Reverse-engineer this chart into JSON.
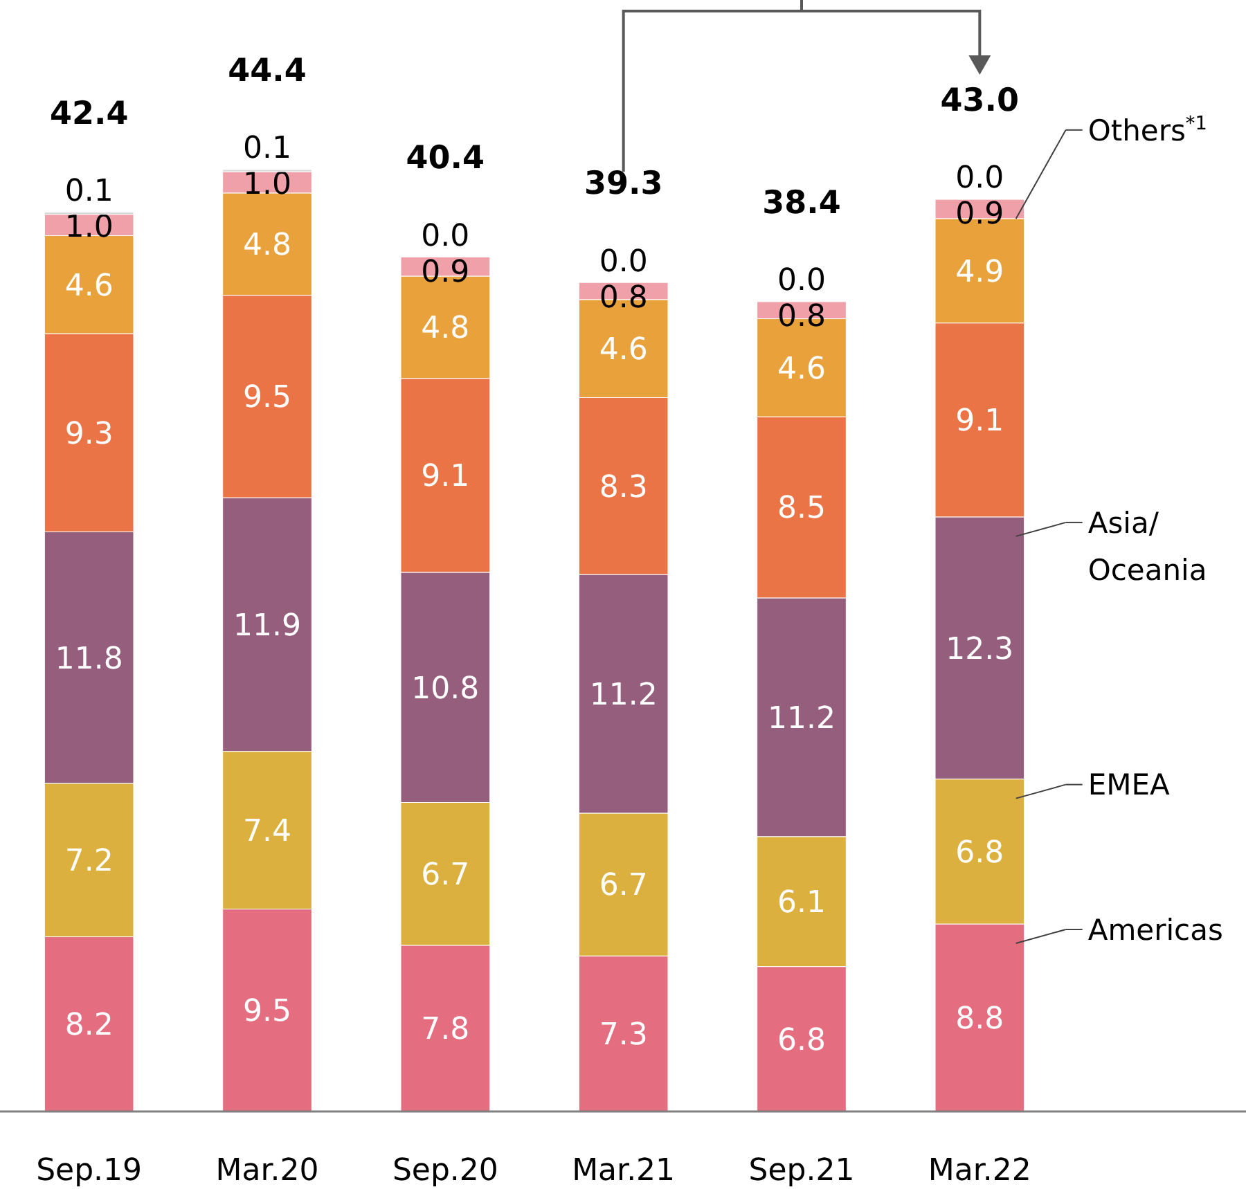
{
  "chart_data": {
    "type": "bar",
    "stacked": true,
    "data_labels": true,
    "legend": "right",
    "categories": [
      "Sep.19",
      "Mar.20",
      "Sep.20",
      "Mar.21",
      "Sep.21",
      "Mar.22"
    ],
    "series": [
      {
        "name": "Americas",
        "color": "#e46e80",
        "values": [
          8.2,
          9.5,
          7.8,
          7.3,
          6.8,
          8.8
        ]
      },
      {
        "name": "EMEA",
        "color": "#dcb03e",
        "values": [
          7.2,
          7.4,
          6.7,
          6.7,
          6.1,
          6.8
        ]
      },
      {
        "name": "Asia/Oceania",
        "color": "#955e7c",
        "values": [
          11.8,
          11.9,
          10.8,
          11.2,
          11.2,
          12.3
        ]
      },
      {
        "color": "#eb7447",
        "values": [
          9.3,
          9.5,
          9.1,
          8.3,
          8.5,
          9.1
        ]
      },
      {
        "color": "#e8a13b",
        "values": [
          4.6,
          4.8,
          4.8,
          4.6,
          4.6,
          4.9
        ]
      },
      {
        "color": "#f0a0a8",
        "values": [
          1.0,
          1.0,
          0.9,
          0.8,
          0.8,
          0.9
        ],
        "value_labels": [
          "1.0",
          "1.0",
          "0.9",
          "0.8",
          "0.8",
          "0.9"
        ]
      },
      {
        "name": "Others$^{*1}$",
        "color": "#d9d9d9",
        "values": [
          0.1,
          0.1,
          0.0,
          0.0,
          0.0,
          0.0
        ],
        "value_labels": [
          "0.1",
          "0.1",
          "0.0",
          "0.0",
          "0.0",
          "0.0"
        ]
      }
    ],
    "totals": [
      "42.4",
      "44.4",
      "40.4",
      "39.3",
      "38.4",
      "43.0"
    ]
  }
}
